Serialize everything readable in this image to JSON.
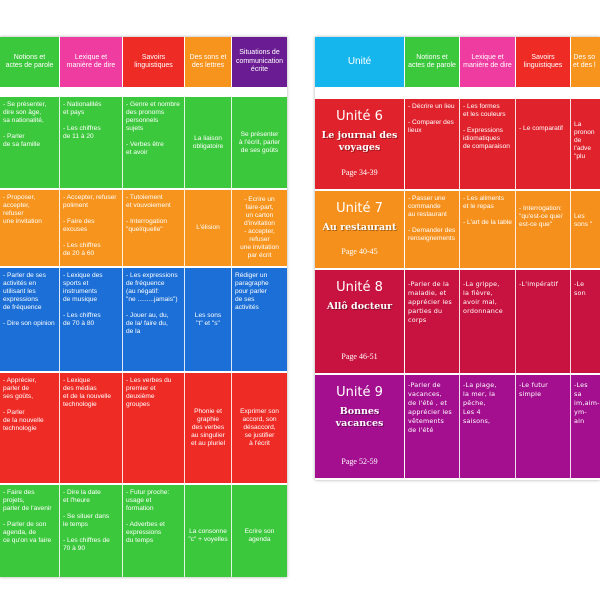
{
  "colors": {
    "green": "#3cc83c",
    "pink": "#ee3ca0",
    "red": "#ef2b25",
    "orange": "#f7941d",
    "purple": "#6a1c92",
    "blue": "#1b6fd6",
    "lightblue": "#15b6ee",
    "r_red": "#e0222c",
    "r_orange": "#f6901c",
    "r_crimson": "#c8123f",
    "r_purple": "#a30f8f"
  },
  "left": {
    "headers": [
      "Notions et\nactes de parole",
      "Lexique et\nmanière de dire",
      "Savoirs\nlinguistiques",
      "Des sons et\ndes lettres",
      "Situations de\ncommunication\nécrite"
    ],
    "rows": [
      [
        "- Se présenter,\ndire son âge,\nsa nationalité,\n\n- Parler\nde sa famille",
        "- Nationalités\net pays\n\n- Les chiffres\nde 11 à 20",
        "- Genre et nombre\ndes pronoms\npersonnels\nsujets\n\n- Verbes être\net avoir",
        "La liaison\nobligatoire",
        "Se présenter\nà l'écrit, parler\nde ses goûts"
      ],
      [
        "- Proposer,\naccepter,\nrefuser\nune invitation",
        "- Accepter, refuser\npoliment\n\n- Faire des excuses\n\n- Les chiffres\nde 20 à 60",
        "- Tutoiement\net vouvoiement\n\n- Interrogation\n\"quel/quelle\"",
        "L'élision",
        "- Ecrire un\nfaire-part,\nun carton\nd'invitation\n- accepter, refuser\nune invitation\npar écrit"
      ],
      [
        "- Parler de ses\nactivités en\nutilisant les\nexpressions\nde fréquence\n\n- Dire son opinion",
        "- Lexique des\nsports et\ninstruments\nde musique\n\n- Les chiffres\nde 70 à 80",
        "- Les expressions\nde fréquence\n(au négatif:\n\"ne .........jamais\")\n\n- Jouer au, du,\nde la/ faire du,\nde la",
        "Les sons\n\"t\" et \"s\"",
        "Rédiger un\nparagraphe\npour parler\nde ses\nactivités"
      ],
      [
        "- Apprécier,\nparler de\nses goûts,\n\n- Parler\nde la nouvelle\ntechnologie",
        "- Lexique\ndes médias\net de la nouvelle\ntechnologie",
        "- Les verbes du\npremier et\ndeuxième\ngroupes",
        "Phonie et\ngraphie\ndes verbes\nau singulier\net au pluriel",
        "Exprimer son\naccord, son\ndésaccord,\nse justifier\nà l'écrit"
      ],
      [
        "- Faire des projets,\nparler de l'avenir\n\n- Parler de son\nagenda, de\nce qu'on va faire",
        "- Dire la date\net l'heure\n\n- Se situer dans\nle temps\n\n- Les chiffres de\n70 à 90",
        "- Futur proche:\nusage et\nformation\n\n- Adverbes et\nexpressions\ndu temps",
        "La consonne\n\"c\" + voyelles",
        "Ecrire son agenda"
      ]
    ]
  },
  "right": {
    "headers": [
      "Unité",
      "Notions et\nactes de parole",
      "Lexique et\nmanière de dire",
      "Savoirs\nlinguistiques",
      "Des so\net des l"
    ],
    "units": [
      {
        "title": "Unité 6",
        "subtitle": "Le journal des\nvoyages",
        "pages": "Page 34-39",
        "cells": [
          "- Décrire un lieu\n\n- Comparer des\nlieux",
          "- Les formes\net les couleurs\n\n- Expressions\nidiomatiques\nde comparaison",
          "- Le comparatif",
          "La pronon\nde l'adve\n\"plu"
        ]
      },
      {
        "title": "Unité 7",
        "subtitle": "Au restaurant",
        "pages": "Page 40-45",
        "cells": [
          "- Passer une\ncommande\nau restaurant\n\n- Demander des\nrenseignements",
          "- Les aliments\net le repas\n\n- L'art de la table",
          "- Interrogation:\n\"qu'est-ce que/\nest-ce que\"",
          "Les sons \""
        ]
      },
      {
        "title": "Unité 8",
        "subtitle": "Allô docteur",
        "pages": "Page 46-51",
        "cells": [
          "-Parler de la\nmaladie, et\napprécier les\nparties du\ncorps",
          "-La grippe,\nla fièvre,\navoir mal,\nordonnance",
          "-L'impératif",
          "-Le son"
        ]
      },
      {
        "title": "Unité 9",
        "subtitle": "Bonnes\nvacances",
        "pages": "Page 52-59",
        "cells": [
          "-Parler de\nvacances,\nde l'été , et\napprécier les\nvêtements\nde l'été",
          "-La plage,\nla mer, la\npêche,\nLes 4\nsaisons,",
          "-Le futur\nsimple",
          "-Les sa\nim,aim-\nym-ain"
        ]
      }
    ]
  }
}
